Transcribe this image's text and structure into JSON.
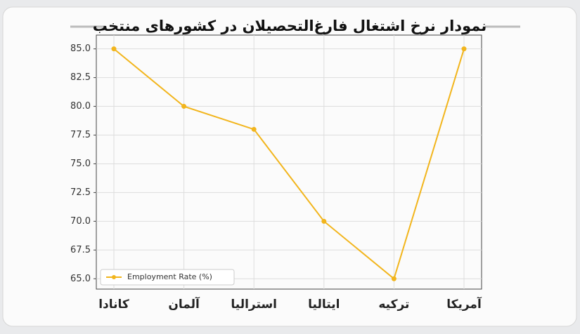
{
  "chart_data": {
    "type": "line",
    "title": "نمودار نرخ اشتغال فارغ‌التحصیلان در کشورهای منتخب",
    "categories": [
      "کانادا",
      "آلمان",
      "استرالیا",
      "ایتالیا",
      "ترکیه",
      "آمریکا"
    ],
    "series": [
      {
        "name": "Employment Rate (%)",
        "color": "#f2b51c",
        "values": [
          85,
          80,
          78,
          70,
          65,
          85
        ]
      }
    ],
    "ylim": [
      64.1,
      86.2
    ],
    "yticks": [
      {
        "value": 65,
        "label": "65.0"
      },
      {
        "value": 67.5,
        "label": "67.5"
      },
      {
        "value": 70,
        "label": "70.0"
      },
      {
        "value": 72.5,
        "label": "72.5"
      },
      {
        "value": 75,
        "label": "75.0"
      },
      {
        "value": 77.5,
        "label": "77.5"
      },
      {
        "value": 80,
        "label": "80.0"
      },
      {
        "value": 82.5,
        "label": "82.5"
      },
      {
        "value": 85,
        "label": "85.0"
      }
    ],
    "grid": true,
    "legend": "lower-left"
  }
}
